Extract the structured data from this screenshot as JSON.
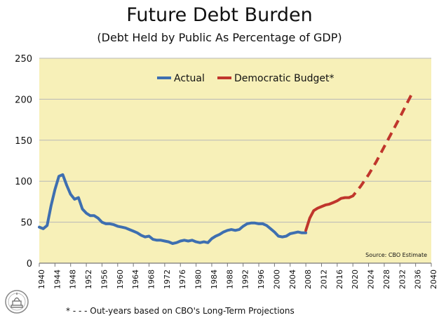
{
  "title": "Future Debt Burden",
  "subtitle": "(Debt Held by Public As Percentage of GDP)",
  "footnote": "* - - - Out-years based on CBO's Long-Term Projections",
  "source_note": "Source: CBO Estimate",
  "colors": {
    "plot_background": "#f7f0b8",
    "actual": "#3e6fb0",
    "democratic_budget": "#c0362c",
    "grid": "#b7b7b7"
  },
  "chart_data": {
    "type": "line",
    "title": "Future Debt Burden",
    "subtitle": "(Debt Held by Public As Percentage of GDP)",
    "xlabel": "",
    "ylabel": "",
    "xlim": [
      1940,
      2040
    ],
    "ylim": [
      0,
      250
    ],
    "grid": "horizontal",
    "legend_position": "top-center",
    "y_ticks": [
      0,
      50,
      100,
      150,
      200,
      250
    ],
    "x_ticks": [
      1940,
      1944,
      1948,
      1952,
      1956,
      1960,
      1964,
      1968,
      1972,
      1976,
      1980,
      1984,
      1988,
      1992,
      1996,
      2000,
      2004,
      2008,
      2012,
      2016,
      2020,
      2024,
      2028,
      2032,
      2036,
      2040
    ],
    "series": [
      {
        "name": "Actual",
        "style": "solid",
        "x": [
          1940,
          1941,
          1942,
          1943,
          1944,
          1945,
          1946,
          1947,
          1948,
          1949,
          1950,
          1951,
          1952,
          1953,
          1954,
          1955,
          1956,
          1957,
          1958,
          1959,
          1960,
          1961,
          1962,
          1963,
          1964,
          1965,
          1966,
          1967,
          1968,
          1969,
          1970,
          1971,
          1972,
          1973,
          1974,
          1975,
          1976,
          1977,
          1978,
          1979,
          1980,
          1981,
          1982,
          1983,
          1984,
          1985,
          1986,
          1987,
          1988,
          1989,
          1990,
          1991,
          1992,
          1993,
          1994,
          1995,
          1996,
          1997,
          1998,
          1999,
          2000,
          2001,
          2002,
          2003,
          2004,
          2005,
          2006,
          2007,
          2008
        ],
        "y": [
          44,
          42,
          46,
          70,
          90,
          106,
          108,
          95,
          84,
          78,
          80,
          66,
          61,
          58,
          58,
          55,
          50,
          48,
          48,
          47,
          45,
          44,
          43,
          41,
          39,
          37,
          34,
          32,
          33,
          29,
          28,
          28,
          27,
          26,
          24,
          25,
          27,
          28,
          27,
          28,
          26,
          25,
          26,
          25,
          30,
          33,
          35,
          38,
          40,
          41,
          40,
          41,
          45,
          48,
          49,
          49,
          48,
          48,
          46,
          42,
          38,
          33,
          32,
          33,
          36,
          37,
          38,
          37,
          37
        ]
      },
      {
        "name": "Democratic Budget*",
        "style": "solid-then-dashed",
        "x": [
          2008,
          2009,
          2010,
          2011,
          2012,
          2013,
          2014,
          2015,
          2016,
          2017,
          2018,
          2019,
          2020,
          2022,
          2024,
          2026,
          2028,
          2030,
          2032,
          2034,
          2035
        ],
        "y": [
          40,
          55,
          64,
          67,
          69,
          71,
          72,
          74,
          76,
          79,
          80,
          80,
          82,
          94,
          108,
          124,
          142,
          160,
          178,
          197,
          206
        ],
        "solid_until": 2019
      }
    ]
  }
}
